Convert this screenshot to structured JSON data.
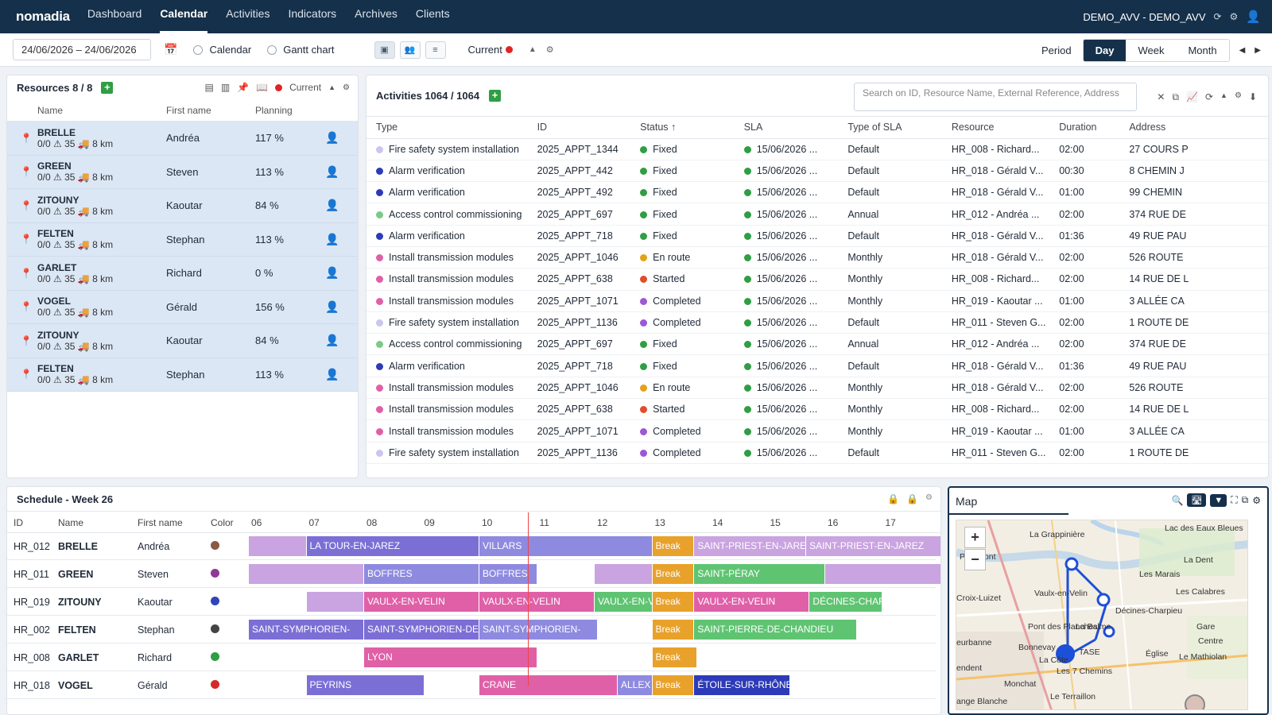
{
  "app": {
    "logo": "nomadia",
    "nav": [
      "Dashboard",
      "Calendar",
      "Activities",
      "Indicators",
      "Archives",
      "Clients"
    ],
    "active_nav": "Calendar",
    "user": "DEMO_AVV - DEMO_AVV"
  },
  "toolbar": {
    "date_range": "24/06/2026 – 24/06/2026",
    "calendar_label": "Calendar",
    "gantt_label": "Gantt chart",
    "current_label": "Current",
    "period_label": "Period",
    "day": "Day",
    "week": "Week",
    "month": "Month"
  },
  "resources": {
    "title": "Resources 8 / 8",
    "current_label": "Current",
    "columns": [
      "Name",
      "First name",
      "Planning"
    ],
    "rows": [
      {
        "name": "BRELLE",
        "stats": "0/0 ⚠ 35 🚚 8 km",
        "first": "Andréa",
        "planning": "117 %"
      },
      {
        "name": "GREEN",
        "stats": "0/0 ⚠ 35 🚚 8 km",
        "first": "Steven",
        "planning": "113 %"
      },
      {
        "name": "ZITOUNY",
        "stats": "0/0 ⚠ 35 🚚 8 km",
        "first": "Kaoutar",
        "planning": "84 %"
      },
      {
        "name": "FELTEN",
        "stats": "0/0 ⚠ 35 🚚 8 km",
        "first": "Stephan",
        "planning": "113 %"
      },
      {
        "name": "GARLET",
        "stats": "0/0 ⚠ 35 🚚 8 km",
        "first": "Richard",
        "planning": "0 %"
      },
      {
        "name": "VOGEL",
        "stats": "0/0 ⚠ 35 🚚 8 km",
        "first": "Gérald",
        "planning": "156 %"
      },
      {
        "name": "ZITOUNY",
        "stats": "0/0 ⚠ 35 🚚 8 km",
        "first": "Kaoutar",
        "planning": "84 %"
      },
      {
        "name": "FELTEN",
        "stats": "0/0 ⚠ 35 🚚 8 km",
        "first": "Stephan",
        "planning": "113 %"
      }
    ]
  },
  "activities": {
    "title": "Activities 1064 / 1064",
    "search_placeholder": "Search on ID, Resource Name, External Reference, Address",
    "columns": [
      "Type",
      "ID",
      "Status ↑",
      "SLA",
      "Type of SLA",
      "Resource",
      "Duration",
      "Address"
    ],
    "rows": [
      {
        "type": "Fire safety system installation",
        "tcolor": "#c9c6ef",
        "id": "2025_APPT_1344",
        "status": "Fixed",
        "scolor": "#2f9e44",
        "sla": "15/06/2026 ...",
        "sla_type": "Default",
        "resource": "HR_008 - Richard...",
        "duration": "02:00",
        "address": "27 COURS P"
      },
      {
        "type": "Alarm verification",
        "tcolor": "#2d3bb8",
        "id": "2025_APPT_442",
        "status": "Fixed",
        "scolor": "#2f9e44",
        "sla": "15/06/2026 ...",
        "sla_type": "Default",
        "resource": "HR_018 - Gérald V...",
        "duration": "00:30",
        "address": "8 CHEMIN J"
      },
      {
        "type": "Alarm verification",
        "tcolor": "#2d3bb8",
        "id": "2025_APPT_492",
        "status": "Fixed",
        "scolor": "#2f9e44",
        "sla": "15/06/2026 ...",
        "sla_type": "Default",
        "resource": "HR_018 - Gérald V...",
        "duration": "01:00",
        "address": "99 CHEMIN"
      },
      {
        "type": "Access control commissioning",
        "tcolor": "#7cc98a",
        "id": "2025_APPT_697",
        "status": "Fixed",
        "scolor": "#2f9e44",
        "sla": "15/06/2026 ...",
        "sla_type": "Annual",
        "resource": "HR_012 - Andréa ...",
        "duration": "02:00",
        "address": "374 RUE DE"
      },
      {
        "type": "Alarm verification",
        "tcolor": "#2d3bb8",
        "id": "2025_APPT_718",
        "status": "Fixed",
        "scolor": "#2f9e44",
        "sla": "15/06/2026 ...",
        "sla_type": "Default",
        "resource": "HR_018 - Gérald V...",
        "duration": "01:36",
        "address": "49 RUE PAU"
      },
      {
        "type": "Install transmission modules",
        "tcolor": "#e060a8",
        "id": "2025_APPT_1046",
        "status": "En route",
        "scolor": "#e6a117",
        "sla": "15/06/2026 ...",
        "sla_type": "Monthly",
        "resource": "HR_018 - Gérald V...",
        "duration": "02:00",
        "address": "526 ROUTE"
      },
      {
        "type": "Install transmission modules",
        "tcolor": "#e060a8",
        "id": "2025_APPT_638",
        "status": "Started",
        "scolor": "#e04e2b",
        "sla": "15/06/2026 ...",
        "sla_type": "Monthly",
        "resource": "HR_008 - Richard...",
        "duration": "02:00",
        "address": "14 RUE DE L"
      },
      {
        "type": "Install transmission modules",
        "tcolor": "#e060a8",
        "id": "2025_APPT_1071",
        "status": "Completed",
        "scolor": "#9b59d6",
        "sla": "15/06/2026 ...",
        "sla_type": "Monthly",
        "resource": "HR_019 - Kaoutar ...",
        "duration": "01:00",
        "address": "3 ALLÉE CA"
      },
      {
        "type": "Fire safety system installation",
        "tcolor": "#c9c6ef",
        "id": "2025_APPT_1136",
        "status": "Completed",
        "scolor": "#9b59d6",
        "sla": "15/06/2026 ...",
        "sla_type": "Default",
        "resource": "HR_011 - Steven G...",
        "duration": "02:00",
        "address": "1 ROUTE DE"
      },
      {
        "type": "Access control commissioning",
        "tcolor": "#7cc98a",
        "id": "2025_APPT_697",
        "status": "Fixed",
        "scolor": "#2f9e44",
        "sla": "15/06/2026 ...",
        "sla_type": "Annual",
        "resource": "HR_012 - Andréa ...",
        "duration": "02:00",
        "address": "374 RUE DE"
      },
      {
        "type": "Alarm verification",
        "tcolor": "#2d3bb8",
        "id": "2025_APPT_718",
        "status": "Fixed",
        "scolor": "#2f9e44",
        "sla": "15/06/2026 ...",
        "sla_type": "Default",
        "resource": "HR_018 - Gérald V...",
        "duration": "01:36",
        "address": "49 RUE PAU"
      },
      {
        "type": "Install transmission modules",
        "tcolor": "#e060a8",
        "id": "2025_APPT_1046",
        "status": "En route",
        "scolor": "#e6a117",
        "sla": "15/06/2026 ...",
        "sla_type": "Monthly",
        "resource": "HR_018 - Gérald V...",
        "duration": "02:00",
        "address": "526 ROUTE"
      },
      {
        "type": "Install transmission modules",
        "tcolor": "#e060a8",
        "id": "2025_APPT_638",
        "status": "Started",
        "scolor": "#e04e2b",
        "sla": "15/06/2026 ...",
        "sla_type": "Monthly",
        "resource": "HR_008 - Richard...",
        "duration": "02:00",
        "address": "14 RUE DE L"
      },
      {
        "type": "Install transmission modules",
        "tcolor": "#e060a8",
        "id": "2025_APPT_1071",
        "status": "Completed",
        "scolor": "#9b59d6",
        "sla": "15/06/2026 ...",
        "sla_type": "Monthly",
        "resource": "HR_019 - Kaoutar ...",
        "duration": "01:00",
        "address": "3 ALLÉE CA"
      },
      {
        "type": "Fire safety system installation",
        "tcolor": "#c9c6ef",
        "id": "2025_APPT_1136",
        "status": "Completed",
        "scolor": "#9b59d6",
        "sla": "15/06/2026 ...",
        "sla_type": "Default",
        "resource": "HR_011 - Steven G...",
        "duration": "02:00",
        "address": "1 ROUTE DE"
      }
    ]
  },
  "schedule": {
    "title": "Schedule - Week 26",
    "columns": [
      "ID",
      "Name",
      "First name",
      "Color"
    ],
    "hours": [
      "06",
      "07",
      "08",
      "09",
      "10",
      "11",
      "12",
      "13",
      "14",
      "15",
      "16",
      "17"
    ],
    "current_time_hour": 10.85,
    "rows": [
      {
        "id": "HR_012",
        "name": "BRELLE",
        "first": "Andréa",
        "color": "#8a5a44",
        "bars": [
          {
            "start": 6.0,
            "end": 7.0,
            "label": "",
            "color": "#c9a4e0"
          },
          {
            "start": 7.0,
            "end": 10.0,
            "label": "LA TOUR-EN-JAREZ",
            "color": "#7b6fd6"
          },
          {
            "start": 10.0,
            "end": 13.0,
            "label": "VILLARS",
            "color": "#8e8ae0"
          },
          {
            "start": 13.0,
            "end": 13.73,
            "label": "Break",
            "color": "#e8a12a"
          },
          {
            "start": 13.73,
            "end": 15.67,
            "label": "SAINT-PRIEST-EN-JAREZ",
            "color": "#c9a4e0"
          },
          {
            "start": 15.67,
            "end": 18.05,
            "label": "SAINT-PRIEST-EN-JAREZ",
            "color": "#c9a4e0"
          }
        ]
      },
      {
        "id": "HR_011",
        "name": "GREEN",
        "first": "Steven",
        "color": "#8e3a99",
        "bars": [
          {
            "start": 6.0,
            "end": 8.0,
            "label": "",
            "color": "#c9a4e0"
          },
          {
            "start": 8.0,
            "end": 10.0,
            "label": "BOFFRES",
            "color": "#8e8ae0"
          },
          {
            "start": 10.0,
            "end": 11.0,
            "label": "BOFFRES",
            "color": "#8e8ae0"
          },
          {
            "start": 12.0,
            "end": 13.0,
            "label": "",
            "color": "#c9a4e0"
          },
          {
            "start": 13.0,
            "end": 13.73,
            "label": "Break",
            "color": "#e8a12a"
          },
          {
            "start": 13.73,
            "end": 16.0,
            "label": "SAINT-PÉRAY",
            "color": "#5fc472"
          },
          {
            "start": 16.0,
            "end": 18.05,
            "label": "",
            "color": "#c9a4e0"
          }
        ]
      },
      {
        "id": "HR_019",
        "name": "ZITOUNY",
        "first": "Kaoutar",
        "color": "#2f45b8",
        "bars": [
          {
            "start": 7.0,
            "end": 8.0,
            "label": "",
            "color": "#c9a4e0"
          },
          {
            "start": 8.0,
            "end": 10.0,
            "label": "VAULX-EN-VELIN",
            "color": "#e060a8"
          },
          {
            "start": 10.0,
            "end": 12.0,
            "label": "VAULX-EN-VELIN",
            "color": "#e060a8"
          },
          {
            "start": 12.0,
            "end": 13.0,
            "label": "VAULX-EN-VELIN",
            "color": "#5fc472"
          },
          {
            "start": 13.0,
            "end": 13.73,
            "label": "Break",
            "color": "#e8a12a"
          },
          {
            "start": 13.73,
            "end": 15.73,
            "label": "VAULX-EN-VELIN",
            "color": "#e060a8"
          },
          {
            "start": 15.73,
            "end": 17.0,
            "label": "DÉCINES-CHARPIEU",
            "color": "#5fc472"
          }
        ]
      },
      {
        "id": "HR_002",
        "name": "FELTEN",
        "first": "Stephan",
        "color": "#444444",
        "bars": [
          {
            "start": 6.0,
            "end": 8.0,
            "label": "SAINT-SYMPHORIEN-",
            "color": "#7b6fd6"
          },
          {
            "start": 8.0,
            "end": 10.0,
            "label": "SAINT-SYMPHORIEN-DE-",
            "color": "#7b6fd6"
          },
          {
            "start": 10.0,
            "end": 12.05,
            "label": "SAINT-SYMPHORIEN-",
            "color": "#8e8ae0"
          },
          {
            "start": 13.0,
            "end": 13.73,
            "label": "Break",
            "color": "#e8a12a"
          },
          {
            "start": 13.73,
            "end": 16.55,
            "label": "SAINT-PIERRE-DE-CHANDIEU",
            "color": "#5fc472"
          }
        ]
      },
      {
        "id": "HR_008",
        "name": "GARLET",
        "first": "Richard",
        "color": "#2f9e44",
        "bars": [
          {
            "start": 8.0,
            "end": 11.0,
            "label": "LYON",
            "color": "#e060a8"
          },
          {
            "start": 13.0,
            "end": 13.78,
            "label": "Break",
            "color": "#e8a12a"
          }
        ]
      },
      {
        "id": "HR_018",
        "name": "VOGEL",
        "first": "Gérald",
        "color": "#d62828",
        "bars": [
          {
            "start": 7.0,
            "end": 9.05,
            "label": "PEYRINS",
            "color": "#7b6fd6"
          },
          {
            "start": 10.0,
            "end": 12.4,
            "label": "CRANE",
            "color": "#e060a8"
          },
          {
            "start": 12.4,
            "end": 13.0,
            "label": "ALLEX",
            "color": "#8e8ae0"
          },
          {
            "start": 13.0,
            "end": 13.73,
            "label": "Break",
            "color": "#e8a12a"
          },
          {
            "start": 13.73,
            "end": 15.4,
            "label": "ÉTOILE-SUR-RHÔNE",
            "color": "#2d3bb8"
          }
        ]
      }
    ]
  },
  "map": {
    "title": "Map",
    "zoom_in": "+",
    "zoom_out": "−",
    "places": [
      "La Grappinière",
      "Petit Pont",
      "Vaulx-en-Velin",
      "La Dent",
      "Les Marais",
      "Les Calabres",
      "Décines-Charpieu",
      "Pont des Planches",
      "Gare",
      "Centre",
      "Bonnevay",
      "Église",
      "Le Mathiolan",
      "La Côte",
      "Les 7 Chemins",
      "Monchat",
      "Le Terraillon",
      "ange Blanche",
      "Croix-Luizet",
      "eurbanne",
      "endent",
      "Lac des Eaux Bleues",
      "TASE",
      "La Balme"
    ]
  }
}
